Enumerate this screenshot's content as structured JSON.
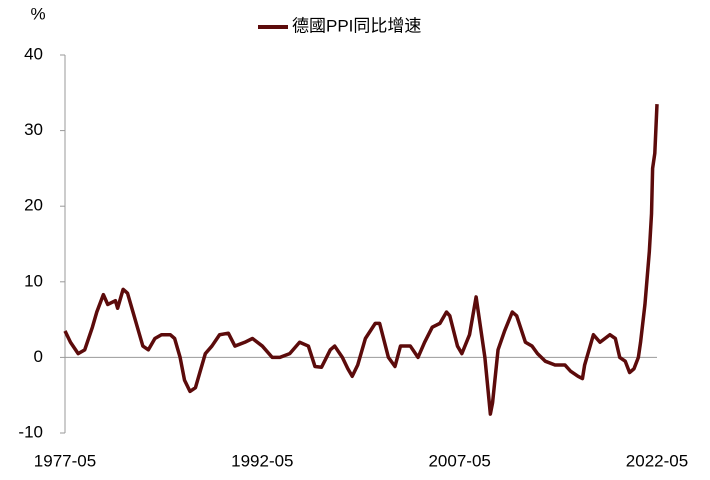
{
  "chart_data": {
    "type": "line",
    "y_label": "%",
    "x": [
      "1977-05",
      "1977-10",
      "1978-05",
      "1978-11",
      "1979-06",
      "1979-10",
      "1980-04",
      "1980-08",
      "1981-03",
      "1981-05",
      "1981-10",
      "1982-02",
      "1982-07",
      "1982-12",
      "1983-04",
      "1983-09",
      "1984-03",
      "1984-09",
      "1985-05",
      "1985-09",
      "1986-02",
      "1986-06",
      "1986-11",
      "1987-04",
      "1987-08",
      "1988-01",
      "1988-07",
      "1989-02",
      "1989-10",
      "1990-04",
      "1991-01",
      "1991-08",
      "1992-05",
      "1993-02",
      "1993-09",
      "1994-06",
      "1995-03",
      "1995-11",
      "1996-05",
      "1996-11",
      "1997-07",
      "1997-11",
      "1998-06",
      "1998-11",
      "1999-03",
      "1999-08",
      "2000-03",
      "2000-12",
      "2001-04",
      "2001-12",
      "2002-06",
      "2002-11",
      "2003-08",
      "2004-03",
      "2004-09",
      "2005-04",
      "2005-11",
      "2006-05",
      "2006-08",
      "2007-03",
      "2007-07",
      "2008-02",
      "2008-08",
      "2008-11",
      "2009-04",
      "2009-09",
      "2009-11",
      "2010-04",
      "2010-10",
      "2011-05",
      "2011-09",
      "2012-05",
      "2012-11",
      "2013-04",
      "2013-11",
      "2014-08",
      "2015-05",
      "2015-10",
      "2016-05",
      "2016-09",
      "2016-11",
      "2017-04",
      "2017-07",
      "2018-01",
      "2018-10",
      "2019-03",
      "2019-07",
      "2019-12",
      "2020-04",
      "2020-08",
      "2020-12",
      "2021-02",
      "2021-06",
      "2021-10",
      "2021-12",
      "2022-01",
      "2022-03",
      "2022-05"
    ],
    "series": [
      {
        "name": "德國PPI同比增速",
        "color": "#5c0b0b",
        "values": [
          3.5,
          2,
          0.5,
          1,
          4,
          6,
          8.3,
          7,
          7.5,
          6.5,
          9,
          8.5,
          6,
          3.5,
          1.5,
          1,
          2.5,
          3,
          3,
          2.5,
          0,
          -3,
          -4.5,
          -4,
          -2,
          0.5,
          1.5,
          3,
          3.2,
          1.5,
          2,
          2.5,
          1.5,
          0,
          0,
          0.5,
          2,
          1.5,
          -1.2,
          -1.3,
          1,
          1.5,
          0,
          -1.5,
          -2.5,
          -1,
          2.5,
          4.5,
          4.5,
          0,
          -1.2,
          1.5,
          1.5,
          0,
          2,
          4,
          4.5,
          6,
          5.5,
          1.5,
          0.5,
          3,
          8,
          5,
          0,
          -7.5,
          -6,
          1,
          3.5,
          6,
          5.5,
          2,
          1.5,
          0.5,
          -0.5,
          -1,
          -1,
          -1.8,
          -2.5,
          -2.8,
          -1,
          1.5,
          3,
          2,
          3,
          2.5,
          0,
          -0.5,
          -2,
          -1.5,
          0,
          2,
          7,
          14,
          19,
          25,
          27,
          33.5
        ]
      }
    ],
    "xlim": [
      "1977-05",
      "2022-05"
    ],
    "xticks": [
      "1977-05",
      "1992-05",
      "2007-05",
      "2022-05"
    ],
    "ylim": [
      -10,
      40
    ],
    "yticks": [
      -10,
      0,
      10,
      20,
      30,
      40
    ],
    "grid": false
  }
}
